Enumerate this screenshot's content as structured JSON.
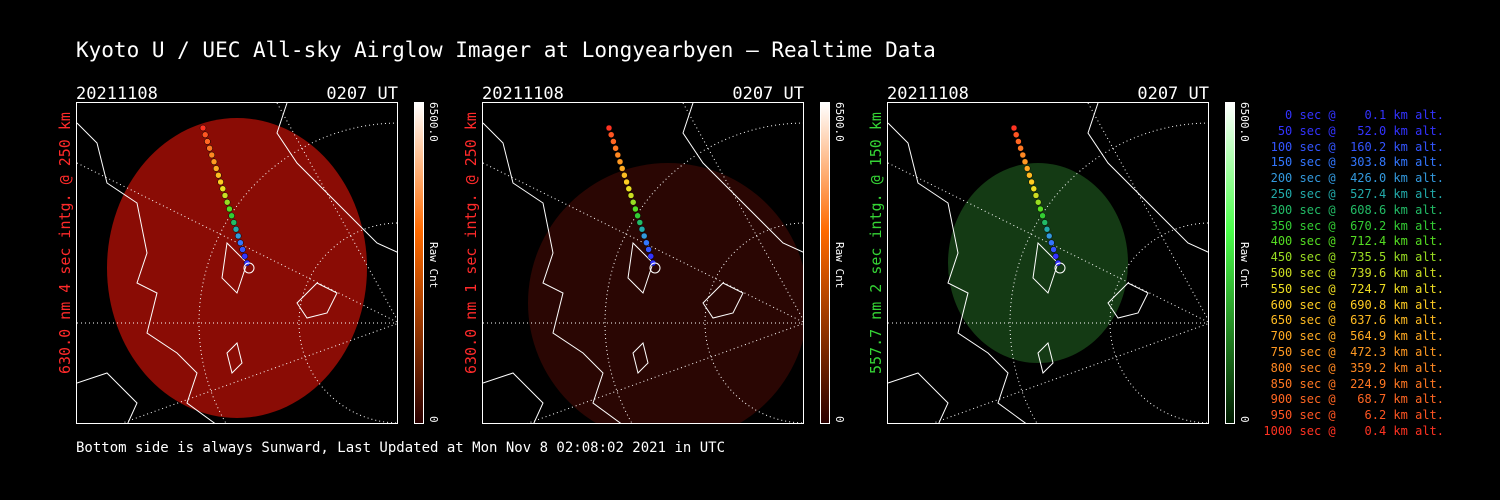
{
  "title": "Kyoto U / UEC All-sky Airglow Imager at Longyearbyen — Realtime Data",
  "footer": "Bottom side is always Sunward, Last Updated at Mon Nov  8 02:08:02 2021 in UTC",
  "panels": [
    {
      "date": "20211108",
      "time": "0207 UT",
      "label": "630.0 nm 4 sec intg. @ 250 km",
      "label_color": "#ff2a2a",
      "glow_color": "#8a0c05",
      "colorbar": {
        "max": "6500.0",
        "min": "0",
        "unit": "Raw Cnt",
        "top": "#ffffff",
        "mid": "#ff6a00",
        "bottom": "#2b0000"
      }
    },
    {
      "date": "20211108",
      "time": "0207 UT",
      "label": "630.0 nm 1 sec intg. @ 250 km",
      "label_color": "#ff2a2a",
      "glow_color": "#2a0603",
      "colorbar": {
        "max": "6500.0",
        "min": "0",
        "unit": "Raw Cnt",
        "top": "#ffffff",
        "mid": "#ff6a00",
        "bottom": "#2b0000"
      }
    },
    {
      "date": "20211108",
      "time": "0207 UT",
      "label": "557.7 nm 2 sec intg. @ 150 km",
      "label_color": "#35d435",
      "glow_color": "#143a14",
      "colorbar": {
        "max": "6500.0",
        "min": "0",
        "unit": "Raw Cnt",
        "top": "#ffffff",
        "mid": "#4aff4a",
        "bottom": "#001a00"
      }
    }
  ],
  "legend": [
    {
      "text": "   0 sec @    0.1 km alt.",
      "color": "#3333ff"
    },
    {
      "text": "  50 sec @   52.0 km alt.",
      "color": "#3333ff"
    },
    {
      "text": " 100 sec @  160.2 km alt.",
      "color": "#3355ff"
    },
    {
      "text": " 150 sec @  303.8 km alt.",
      "color": "#3377ff"
    },
    {
      "text": " 200 sec @  426.0 km alt.",
      "color": "#3399dd"
    },
    {
      "text": " 250 sec @  527.4 km alt.",
      "color": "#22aaaa"
    },
    {
      "text": " 300 sec @  608.6 km alt.",
      "color": "#22bb66"
    },
    {
      "text": " 350 sec @  670.2 km alt.",
      "color": "#33cc33"
    },
    {
      "text": " 400 sec @  712.4 km alt.",
      "color": "#55dd22"
    },
    {
      "text": " 450 sec @  735.5 km alt.",
      "color": "#99dd22"
    },
    {
      "text": " 500 sec @  739.6 km alt.",
      "color": "#ccdd22"
    },
    {
      "text": " 550 sec @  724.7 km alt.",
      "color": "#eedd22"
    },
    {
      "text": " 600 sec @  690.8 km alt.",
      "color": "#ffcc22"
    },
    {
      "text": " 650 sec @  637.6 km alt.",
      "color": "#ffbb22"
    },
    {
      "text": " 700 sec @  564.9 km alt.",
      "color": "#ffaa22"
    },
    {
      "text": " 750 sec @  472.3 km alt.",
      "color": "#ff9922"
    },
    {
      "text": " 800 sec @  359.2 km alt.",
      "color": "#ff8822"
    },
    {
      "text": " 850 sec @  224.9 km alt.",
      "color": "#ff7722"
    },
    {
      "text": " 900 sec @   68.7 km alt.",
      "color": "#ff6622"
    },
    {
      "text": " 950 sec @    6.2 km alt.",
      "color": "#ff5522"
    },
    {
      "text": "1000 sec @    0.4 km alt.",
      "color": "#ff3322"
    }
  ]
}
